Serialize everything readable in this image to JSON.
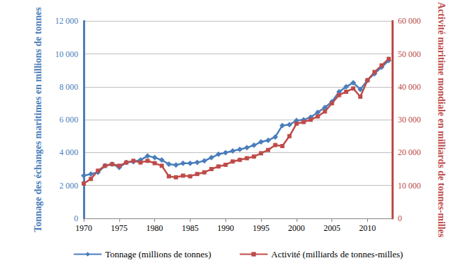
{
  "chart_data": {
    "type": "line",
    "x": [
      1970,
      1971,
      1972,
      1973,
      1974,
      1975,
      1976,
      1977,
      1978,
      1979,
      1980,
      1981,
      1982,
      1983,
      1984,
      1985,
      1986,
      1987,
      1988,
      1989,
      1990,
      1991,
      1992,
      1993,
      1994,
      1995,
      1996,
      1997,
      1998,
      1999,
      2000,
      2001,
      2002,
      2003,
      2004,
      2005,
      2006,
      2007,
      2008,
      2009,
      2010,
      2011,
      2012,
      2013
    ],
    "series": [
      {
        "name": "Tonnage (millions de tonnes)",
        "color": "#4a7ebb",
        "marker": "diamond",
        "values": [
          2600,
          2700,
          2800,
          3200,
          3300,
          3100,
          3400,
          3450,
          3550,
          3800,
          3700,
          3550,
          3300,
          3250,
          3350,
          3350,
          3400,
          3500,
          3700,
          3900,
          4000,
          4100,
          4200,
          4300,
          4450,
          4650,
          4750,
          4950,
          5650,
          5700,
          5950,
          6000,
          6150,
          6450,
          6750,
          7100,
          7700,
          8000,
          8250,
          7850,
          8400,
          8800,
          9200,
          9600
        ]
      },
      {
        "name": "Activité (milliards de tonnes-milles)",
        "color": "#be4b48",
        "marker": "square",
        "axis": "y2",
        "values": [
          10600,
          12000,
          14500,
          16000,
          16500,
          16000,
          17000,
          17500,
          17000,
          17500,
          16800,
          16000,
          12800,
          12500,
          13000,
          12800,
          13500,
          14000,
          15000,
          15800,
          16300,
          17300,
          17800,
          18300,
          18800,
          19800,
          20800,
          22300,
          22000,
          25000,
          28800,
          29300,
          30000,
          31000,
          32500,
          35000,
          37500,
          38500,
          39500,
          37000,
          42000,
          44500,
          46500,
          48500
        ]
      }
    ],
    "y_label": "Tonnage des échanges maritimes en millions de tonnes",
    "y2_label": "Activité maritime mondiale en milliards de tonnes-milles",
    "xlim": [
      1970,
      2013.5
    ],
    "xticks": [
      1970,
      1975,
      1980,
      1985,
      1990,
      1995,
      2000,
      2005,
      2010
    ],
    "ylim": [
      0,
      12000
    ],
    "yticks": [
      0,
      {
        "value": 2000,
        "label": "2 000"
      },
      {
        "value": 4000,
        "label": "4 000"
      },
      {
        "value": 6000,
        "label": "6 000"
      },
      {
        "value": 8000,
        "label": "8 000"
      },
      {
        "value": 10000,
        "label": "10 000"
      },
      {
        "value": 12000,
        "label": "12 000"
      }
    ],
    "y2lim": [
      0,
      60000
    ],
    "y2ticks": [
      0,
      {
        "value": 10000,
        "label": "10 000"
      },
      {
        "value": 20000,
        "label": "20 000"
      },
      {
        "value": 30000,
        "label": "30 000"
      },
      {
        "value": 40000,
        "label": "40 000"
      },
      {
        "value": 50000,
        "label": "50 000"
      },
      {
        "value": 60000,
        "label": "60 000"
      }
    ],
    "grid": true,
    "legend": "bottom"
  }
}
